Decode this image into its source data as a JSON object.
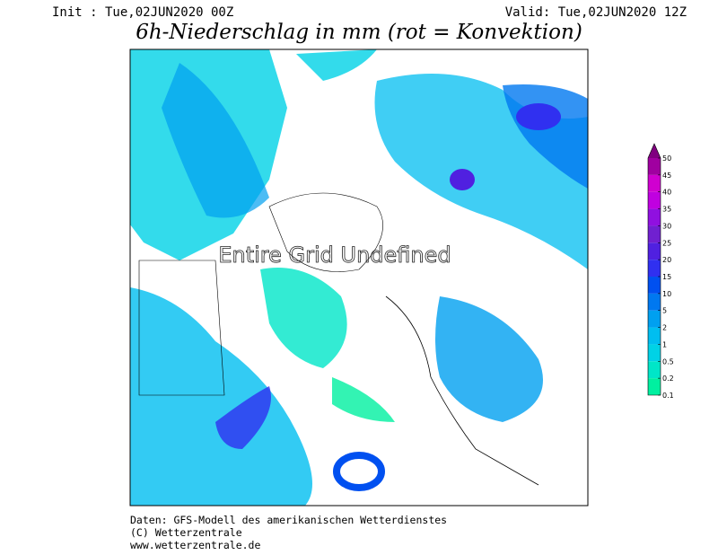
{
  "header": {
    "init": "Init : Tue,02JUN2020 00Z",
    "valid": "Valid: Tue,02JUN2020 12Z",
    "title": "6h-Niederschlag in mm (rot = Konvektion)"
  },
  "map": {
    "overlay": "Entire Grid Undefined"
  },
  "legend": {
    "entries": [
      {
        "label": "0.1",
        "color": "#00f0a0"
      },
      {
        "label": "0.2",
        "color": "#00e6c8"
      },
      {
        "label": "0.5",
        "color": "#00d2e6"
      },
      {
        "label": "1",
        "color": "#00bef0"
      },
      {
        "label": "2",
        "color": "#00a0f0"
      },
      {
        "label": "5",
        "color": "#0078f0"
      },
      {
        "label": "10",
        "color": "#0050f0"
      },
      {
        "label": "15",
        "color": "#3030f0"
      },
      {
        "label": "20",
        "color": "#5020e0"
      },
      {
        "label": "25",
        "color": "#7020d0"
      },
      {
        "label": "30",
        "color": "#9010e0"
      },
      {
        "label": "35",
        "color": "#c000e0"
      },
      {
        "label": "40",
        "color": "#d000d0"
      },
      {
        "label": "45",
        "color": "#a000a0"
      },
      {
        "label": "50",
        "color": "#800080"
      }
    ]
  },
  "footer": {
    "lines": [
      "Daten: GFS-Modell des amerikanischen Wetterdienstes",
      "(C) Wetterzentrale",
      "www.wetterzentrale.de"
    ]
  }
}
